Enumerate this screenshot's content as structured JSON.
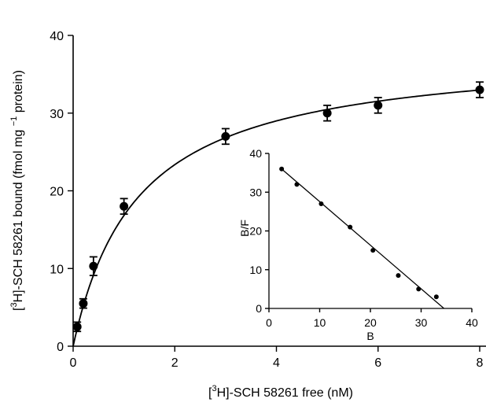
{
  "chart_data": [
    {
      "type": "scatter",
      "role": "main",
      "xlabel_parts": [
        "[",
        "3",
        "H]-SCH 58261 free (nM)"
      ],
      "ylabel_parts": [
        "[",
        "3",
        "H]-SCH 58261 bound (fmol mg ",
        "−1",
        " protein)"
      ],
      "xlim": [
        0,
        8
      ],
      "ylim": [
        0,
        40
      ],
      "x_ticks": [
        0,
        2,
        4,
        6,
        8
      ],
      "y_ticks": [
        0,
        10,
        20,
        30,
        40
      ],
      "grid": false,
      "series": [
        {
          "marker": "filled-circle",
          "x": [
            0.08,
            0.2,
            0.4,
            1.0,
            3.0,
            5.0,
            6.0,
            8.0
          ],
          "y": [
            2.5,
            5.5,
            10.3,
            18.0,
            27.0,
            30.0,
            31.0,
            33.0
          ],
          "error": [
            0.6,
            0.6,
            1.2,
            1.0,
            1.0,
            1.0,
            1.0,
            1.0
          ]
        }
      ],
      "fit_curve": {
        "type": "saturation-binding",
        "Bmax": 38.2,
        "Kd": 1.27
      }
    },
    {
      "type": "scatter",
      "role": "inset",
      "xlabel": "B",
      "ylabel": "B/F",
      "xlim": [
        0,
        40
      ],
      "ylim": [
        0,
        40
      ],
      "x_ticks": [
        0,
        10,
        20,
        30,
        40
      ],
      "y_ticks": [
        0,
        10,
        20,
        30,
        40
      ],
      "grid": false,
      "series": [
        {
          "marker": "small-filled-circle",
          "x": [
            2.5,
            5.5,
            10.3,
            16.0,
            20.5,
            25.5,
            29.5,
            33.0
          ],
          "y": [
            36.0,
            32.0,
            27.0,
            21.0,
            15.0,
            8.5,
            5.0,
            3.0
          ]
        }
      ],
      "fit_line": {
        "x": [
          2.5,
          34.5
        ],
        "y": [
          36.0,
          0.0
        ]
      }
    }
  ]
}
